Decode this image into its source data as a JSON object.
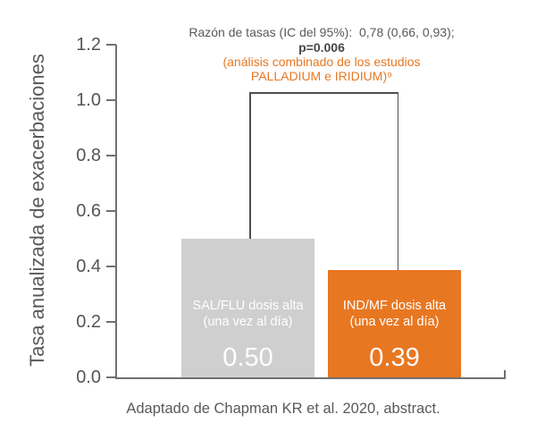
{
  "chart_data": {
    "type": "bar",
    "categories": [
      "SAL/FLU dosis alta (una vez al día)",
      "IND/MF dosis alta (una vez al día)"
    ],
    "values": [
      0.5,
      0.39
    ],
    "bar_colors": [
      "#CFCFCF",
      "#E87722"
    ],
    "data_labels": [
      "0.50",
      "0.39"
    ],
    "title": "",
    "xlabel": "",
    "ylabel": "Tasa anualizada de exacerbaciones",
    "ylim": [
      0.0,
      1.2
    ],
    "yticks": [
      0.0,
      0.2,
      0.4,
      0.6,
      0.8,
      1.0,
      1.2
    ],
    "grid": false,
    "legend": false,
    "annotations": [
      "Razón de tasas (IC del 95%):  0,78 (0,66, 0,93);",
      "p=0.006",
      "(análisis combinado de los estudios",
      "PALLADIUM e IRIDIUM)⁹"
    ],
    "comparison_bracket": {
      "from_bar": 0,
      "to_bar": 1,
      "top_at_value": 1.03
    }
  },
  "annotation": {
    "rate_ratio": "Razón de tasas (IC del 95%):  0,78 (0,66, 0,93);",
    "p_value": "p=0.006",
    "pooled_line1": "(análisis combinado de los estudios",
    "pooled_line2": "PALLADIUM e IRIDIUM)⁹"
  },
  "y_axis": {
    "title": "Tasa anualizada de exacerbaciones",
    "ticks": [
      "1.2",
      "1.0",
      "0.8",
      "0.6",
      "0.4",
      "0.2",
      "0.0"
    ]
  },
  "bars": [
    {
      "label_line1": "SAL/FLU dosis alta",
      "label_line2": "(una vez al día)",
      "value": "0.50",
      "color": "#CFCFCF"
    },
    {
      "label_line1": "IND/MF dosis alta",
      "label_line2": "(una vez al día)",
      "value": "0.39",
      "color": "#E87722"
    }
  ],
  "caption": "Adaptado de Chapman KR et al. 2020, abstract.",
  "colors": {
    "orange": "#E87722",
    "gray_bar": "#CFCFCF",
    "text_gray": "#595959",
    "axis_gray": "#707070",
    "bracket_gray": "#4F4F4F",
    "bar_text": "#FFFFFF"
  }
}
